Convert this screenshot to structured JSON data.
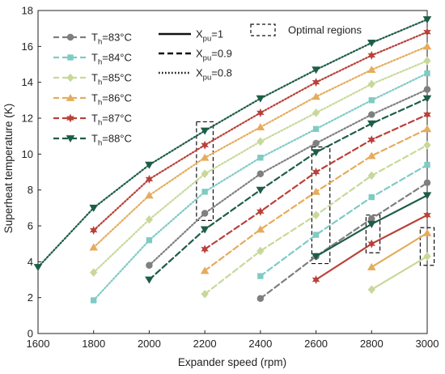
{
  "chart_data": {
    "type": "line",
    "xlabel": "Expander speed (rpm)",
    "ylabel": "Superheat temperature (K)",
    "xlim": [
      1600,
      3000
    ],
    "ylim": [
      0,
      18
    ],
    "xticks": [
      1600,
      1800,
      2000,
      2200,
      2400,
      2600,
      2800,
      3000
    ],
    "yticks": [
      0,
      2,
      4,
      6,
      8,
      10,
      12,
      14,
      16,
      18
    ],
    "grid": false,
    "legend_th": [
      {
        "label_main": "T",
        "label_sub": "h",
        "label_rest": "=83°C",
        "color": "#7f7f7f",
        "marker": "circle"
      },
      {
        "label_main": "T",
        "label_sub": "h",
        "label_rest": "=84°C",
        "color": "#7fcbc4",
        "marker": "square"
      },
      {
        "label_main": "T",
        "label_sub": "h",
        "label_rest": "=85°C",
        "color": "#c8d89a",
        "marker": "diamond"
      },
      {
        "label_main": "T",
        "label_sub": "h",
        "label_rest": "=86°C",
        "color": "#e5ac5c",
        "marker": "triangle-up"
      },
      {
        "label_main": "T",
        "label_sub": "h",
        "label_rest": "=87°C",
        "color": "#b9413a",
        "marker": "star"
      },
      {
        "label_main": "T",
        "label_sub": "h",
        "label_rest": "=88°C",
        "color": "#1e5d47",
        "marker": "triangle-down"
      }
    ],
    "legend_xpu": [
      {
        "label_main": "X",
        "label_sub": "pu",
        "label_rest": "=1",
        "style": "solid"
      },
      {
        "label_main": "X",
        "label_sub": "pu",
        "label_rest": "=0.9",
        "style": "dashed"
      },
      {
        "label_main": "X",
        "label_sub": "pu",
        "label_rest": "=0.8",
        "style": "dotted"
      }
    ],
    "legend_region": "Optimal regions",
    "series": [
      {
        "th": "83",
        "xpu": "0.8",
        "color": "#7f7f7f",
        "marker": "circle",
        "style": "dotted",
        "x": [
          2000,
          2200,
          2400,
          2600,
          2800,
          3000
        ],
        "y": [
          3.8,
          6.7,
          8.9,
          10.6,
          12.2,
          13.6
        ]
      },
      {
        "th": "84",
        "xpu": "0.8",
        "color": "#7fcbc4",
        "marker": "square",
        "style": "dotted",
        "x": [
          1800,
          2000,
          2200,
          2400,
          2600,
          2800,
          3000
        ],
        "y": [
          1.85,
          5.2,
          7.9,
          9.8,
          11.4,
          13.0,
          14.5
        ]
      },
      {
        "th": "85",
        "xpu": "0.8",
        "color": "#c8d89a",
        "marker": "diamond",
        "style": "dotted",
        "x": [
          1800,
          2000,
          2200,
          2400,
          2600,
          2800,
          3000
        ],
        "y": [
          3.4,
          6.35,
          8.9,
          10.7,
          12.3,
          13.9,
          15.2
        ]
      },
      {
        "th": "86",
        "xpu": "0.8",
        "color": "#e5ac5c",
        "marker": "triangle-up",
        "style": "dotted",
        "x": [
          1800,
          2000,
          2200,
          2400,
          2600,
          2800,
          3000
        ],
        "y": [
          4.8,
          7.7,
          9.8,
          11.5,
          13.2,
          14.7,
          16.0
        ]
      },
      {
        "th": "87",
        "xpu": "0.8",
        "color": "#b9413a",
        "marker": "star",
        "style": "dotted",
        "x": [
          1800,
          2000,
          2200,
          2400,
          2600,
          2800,
          3000
        ],
        "y": [
          5.75,
          8.6,
          10.5,
          12.3,
          14.0,
          15.5,
          16.8
        ]
      },
      {
        "th": "88",
        "xpu": "0.8",
        "color": "#1e5d47",
        "marker": "triangle-down",
        "style": "dotted",
        "x": [
          1600,
          1800,
          2000,
          2200,
          2400,
          2600,
          2800,
          3000
        ],
        "y": [
          3.7,
          7.0,
          9.4,
          11.3,
          13.1,
          14.7,
          16.2,
          17.5
        ]
      },
      {
        "th": "83",
        "xpu": "0.9",
        "color": "#7f7f7f",
        "marker": "circle",
        "style": "dashed",
        "x": [
          2400,
          2600,
          2800,
          3000
        ],
        "y": [
          1.95,
          4.3,
          6.4,
          8.4
        ]
      },
      {
        "th": "84",
        "xpu": "0.9",
        "color": "#7fcbc4",
        "marker": "square",
        "style": "dashed",
        "x": [
          2400,
          2600,
          2800,
          3000
        ],
        "y": [
          3.2,
          5.5,
          7.6,
          9.4
        ]
      },
      {
        "th": "85",
        "xpu": "0.9",
        "color": "#c8d89a",
        "marker": "diamond",
        "style": "dashed",
        "x": [
          2200,
          2400,
          2600,
          2800,
          3000
        ],
        "y": [
          2.2,
          4.6,
          6.6,
          8.8,
          10.5
        ]
      },
      {
        "th": "86",
        "xpu": "0.9",
        "color": "#e5ac5c",
        "marker": "triangle-up",
        "style": "dashed",
        "x": [
          2200,
          2400,
          2600,
          2800,
          3000
        ],
        "y": [
          3.5,
          5.8,
          7.9,
          9.9,
          11.4
        ]
      },
      {
        "th": "87",
        "xpu": "0.9",
        "color": "#b9413a",
        "marker": "star",
        "style": "dashed",
        "x": [
          2200,
          2400,
          2600,
          2800,
          3000
        ],
        "y": [
          4.7,
          6.8,
          9.0,
          10.8,
          12.2
        ]
      },
      {
        "th": "88",
        "xpu": "0.9",
        "color": "#1e5d47",
        "marker": "triangle-down",
        "style": "dashed",
        "x": [
          2000,
          2200,
          2400,
          2600,
          2800,
          3000
        ],
        "y": [
          3.0,
          5.8,
          8.0,
          10.1,
          11.7,
          13.1
        ]
      },
      {
        "th": "85",
        "xpu": "1",
        "color": "#c8d89a",
        "marker": "diamond",
        "style": "solid",
        "x": [
          2800,
          3000
        ],
        "y": [
          2.45,
          4.3
        ]
      },
      {
        "th": "86",
        "xpu": "1",
        "color": "#e5ac5c",
        "marker": "triangle-up",
        "style": "solid",
        "x": [
          2800,
          3000
        ],
        "y": [
          3.7,
          5.6
        ]
      },
      {
        "th": "87",
        "xpu": "1",
        "color": "#b9413a",
        "marker": "star",
        "style": "solid",
        "x": [
          2600,
          2800,
          3000
        ],
        "y": [
          3.0,
          5.0,
          6.6
        ]
      },
      {
        "th": "88",
        "xpu": "1",
        "color": "#1e5d47",
        "marker": "triangle-down",
        "style": "solid",
        "x": [
          2600,
          2800,
          3000
        ],
        "y": [
          4.3,
          6.1,
          7.7
        ]
      }
    ],
    "optimal_regions": [
      {
        "x_range": [
          2170,
          2230
        ],
        "y_range": [
          6.3,
          11.8
        ]
      },
      {
        "x_range": [
          2585,
          2650
        ],
        "y_range": [
          3.9,
          10.4
        ]
      },
      {
        "x_range": [
          2780,
          2830
        ],
        "y_range": [
          4.5,
          6.6
        ]
      },
      {
        "x_range": [
          2975,
          3025
        ],
        "y_range": [
          3.8,
          5.9
        ]
      }
    ]
  }
}
